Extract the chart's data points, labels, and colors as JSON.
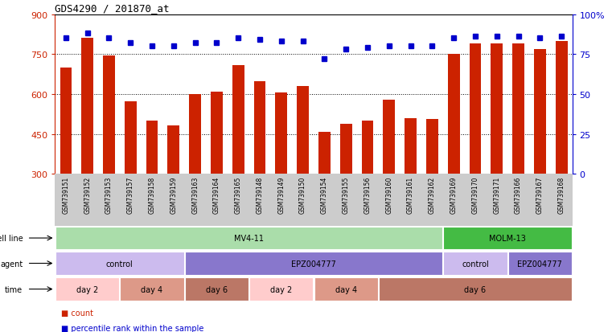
{
  "title": "GDS4290 / 201870_at",
  "samples": [
    "GSM739151",
    "GSM739152",
    "GSM739153",
    "GSM739157",
    "GSM739158",
    "GSM739159",
    "GSM739163",
    "GSM739164",
    "GSM739165",
    "GSM739148",
    "GSM739149",
    "GSM739150",
    "GSM739154",
    "GSM739155",
    "GSM739156",
    "GSM739160",
    "GSM739161",
    "GSM739162",
    "GSM739169",
    "GSM739170",
    "GSM739171",
    "GSM739166",
    "GSM739167",
    "GSM739168"
  ],
  "counts": [
    700,
    810,
    745,
    572,
    500,
    483,
    600,
    608,
    710,
    648,
    605,
    630,
    458,
    487,
    500,
    578,
    510,
    505,
    750,
    790,
    790,
    790,
    770,
    800
  ],
  "percentile_ranks": [
    85,
    88,
    85,
    82,
    80,
    80,
    82,
    82,
    85,
    84,
    83,
    83,
    72,
    78,
    79,
    80,
    80,
    80,
    85,
    86,
    86,
    86,
    85,
    86
  ],
  "ylim_left": [
    300,
    900
  ],
  "ylim_right": [
    0,
    100
  ],
  "yticks_left": [
    300,
    450,
    600,
    750,
    900
  ],
  "yticks_right": [
    0,
    25,
    50,
    75,
    100
  ],
  "bar_color": "#cc2200",
  "dot_color": "#0000cc",
  "bg_color": "#ffffff",
  "tick_label_color_left": "#cc2200",
  "tick_label_color_right": "#0000cc",
  "cell_line_row": {
    "label": "cell line",
    "segments": [
      {
        "text": "MV4-11",
        "start": 0,
        "end": 18,
        "color": "#aaddaa"
      },
      {
        "text": "MOLM-13",
        "start": 18,
        "end": 24,
        "color": "#44bb44"
      }
    ]
  },
  "agent_row": {
    "label": "agent",
    "segments": [
      {
        "text": "control",
        "start": 0,
        "end": 6,
        "color": "#ccbbee"
      },
      {
        "text": "EPZ004777",
        "start": 6,
        "end": 18,
        "color": "#8877cc"
      },
      {
        "text": "control",
        "start": 18,
        "end": 21,
        "color": "#ccbbee"
      },
      {
        "text": "EPZ004777",
        "start": 21,
        "end": 24,
        "color": "#8877cc"
      }
    ]
  },
  "time_row": {
    "label": "time",
    "segments": [
      {
        "text": "day 2",
        "start": 0,
        "end": 3,
        "color": "#ffcccc"
      },
      {
        "text": "day 4",
        "start": 3,
        "end": 6,
        "color": "#dd9988"
      },
      {
        "text": "day 6",
        "start": 6,
        "end": 9,
        "color": "#bb7766"
      },
      {
        "text": "day 2",
        "start": 9,
        "end": 12,
        "color": "#ffcccc"
      },
      {
        "text": "day 4",
        "start": 12,
        "end": 15,
        "color": "#dd9988"
      },
      {
        "text": "day 6",
        "start": 15,
        "end": 24,
        "color": "#bb7766"
      }
    ]
  },
  "legend": [
    {
      "color": "#cc2200",
      "label": "count"
    },
    {
      "color": "#0000cc",
      "label": "percentile rank within the sample"
    }
  ],
  "label_bg_color": "#cccccc",
  "grid_lines": [
    450,
    600,
    750
  ]
}
